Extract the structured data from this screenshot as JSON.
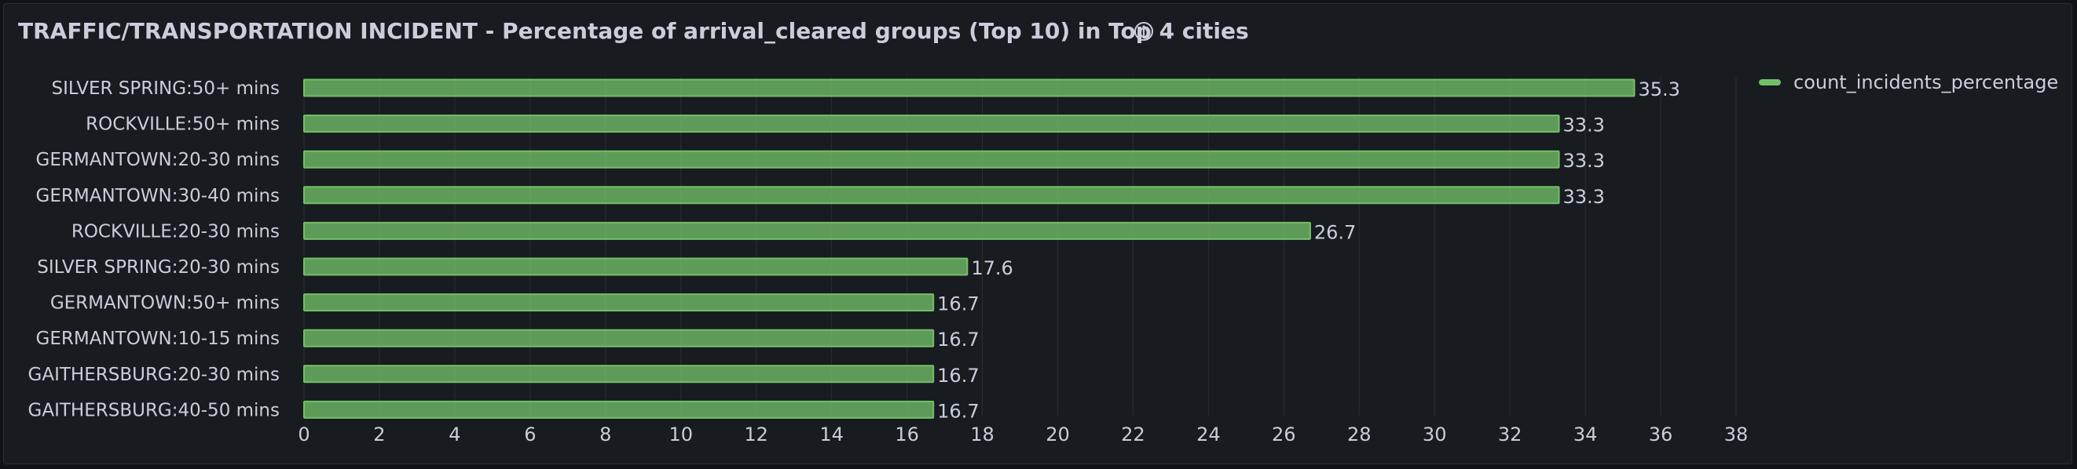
{
  "panel": {
    "title": "TRAFFIC/TRANSPORTATION INCIDENT - Percentage of arrival_cleared groups (Top 10) in Top 4 cities",
    "info_icon": "info-circle-icon"
  },
  "colors": {
    "bar_fill": "#73bf69",
    "text": "#ccccdc",
    "grid": "#2a2d33",
    "background": "#181b1f"
  },
  "chart_data": {
    "type": "bar",
    "orientation": "horizontal",
    "categories": [
      "SILVER SPRING:50+ mins",
      "ROCKVILLE:50+ mins",
      "GERMANTOWN:20-30 mins",
      "GERMANTOWN:30-40 mins",
      "ROCKVILLE:20-30 mins",
      "SILVER SPRING:20-30 mins",
      "GERMANTOWN:50+ mins",
      "GERMANTOWN:10-15 mins",
      "GAITHERSBURG:20-30 mins",
      "GAITHERSBURG:40-50 mins"
    ],
    "series": [
      {
        "name": "count_incidents_percentage",
        "values": [
          35.3,
          33.3,
          33.3,
          33.3,
          26.7,
          17.6,
          16.7,
          16.7,
          16.7,
          16.7
        ]
      }
    ],
    "xlim": [
      0,
      38
    ],
    "xticks": [
      "0",
      "2",
      "4",
      "6",
      "8",
      "10",
      "12",
      "14",
      "16",
      "18",
      "20",
      "22",
      "24",
      "26",
      "28",
      "30",
      "32",
      "34",
      "36",
      "38"
    ],
    "grid": true,
    "legend_position": "top-right"
  }
}
